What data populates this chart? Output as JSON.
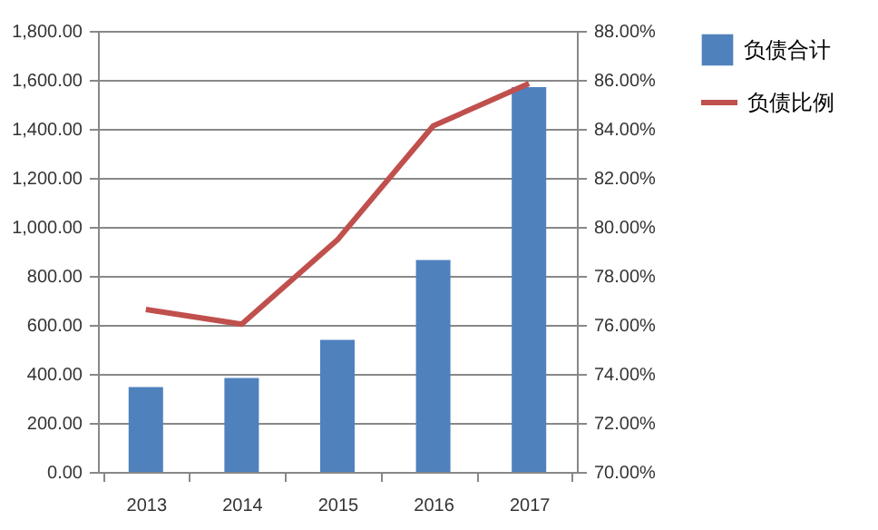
{
  "chart_data": {
    "type": "bar",
    "categories": [
      "2013",
      "2014",
      "2015",
      "2016",
      "2017"
    ],
    "series": [
      {
        "name": "负债合计",
        "color": "#4f81bd",
        "values": [
          346,
          383,
          539,
          865,
          1570
        ]
      },
      {
        "name": "负债比例",
        "type": "line",
        "axis": "y2",
        "color": "#c0504d",
        "values": [
          76.63,
          76.03,
          79.47,
          84.12,
          85.85
        ]
      }
    ],
    "ylim": [
      0,
      1800
    ],
    "yticks": [
      {
        "value": 0,
        "label": "0.00"
      },
      {
        "value": 200,
        "label": "200.00"
      },
      {
        "value": 400,
        "label": "400.00"
      },
      {
        "value": 600,
        "label": "600.00"
      },
      {
        "value": 800,
        "label": "800.00"
      },
      {
        "value": 1000,
        "label": "1,000.00"
      },
      {
        "value": 1200,
        "label": "1,200.00"
      },
      {
        "value": 1400,
        "label": "1,400.00"
      },
      {
        "value": 1600,
        "label": "1,600.00"
      },
      {
        "value": 1800,
        "label": "1,800.00"
      }
    ],
    "y2lim": [
      70,
      88
    ],
    "y2ticks": [
      {
        "value": 70,
        "label": "70.00%"
      },
      {
        "value": 72,
        "label": "72.00%"
      },
      {
        "value": 74,
        "label": "74.00%"
      },
      {
        "value": 76,
        "label": "76.00%"
      },
      {
        "value": 78,
        "label": "78.00%"
      },
      {
        "value": 80,
        "label": "80.00%"
      },
      {
        "value": 82,
        "label": "82.00%"
      },
      {
        "value": 84,
        "label": "84.00%"
      },
      {
        "value": 86,
        "label": "86.00%"
      },
      {
        "value": 88,
        "label": "88.00%"
      }
    ],
    "grid": "y",
    "legend": "right",
    "marker": "none"
  }
}
